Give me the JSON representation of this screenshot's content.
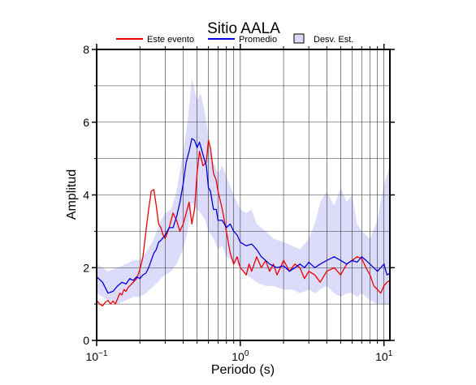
{
  "chart_data": {
    "type": "line",
    "title": "Sitio AALA",
    "xlabel": "Periodo (s)",
    "ylabel": "Amplitud",
    "x_scale": "log",
    "xlim": [
      0.1,
      11
    ],
    "ylim": [
      0,
      8
    ],
    "y_ticks": [
      {
        "value": 0,
        "label": "0"
      },
      {
        "value": 2,
        "label": "2"
      },
      {
        "value": 4,
        "label": "4"
      },
      {
        "value": 6,
        "label": "6"
      },
      {
        "value": 8,
        "label": "8"
      }
    ],
    "x_ticks": [
      {
        "value": 0.1,
        "base": "10",
        "exp": "−1"
      },
      {
        "value": 1,
        "base": "10",
        "exp": "0"
      },
      {
        "value": 10,
        "base": "10",
        "exp": "1"
      }
    ],
    "grid": true,
    "legend_position": "top",
    "colors": {
      "event": "#ee0000",
      "mean": "#0000dd",
      "band": "#dcdcfa"
    },
    "legend": [
      {
        "label": "Este evento",
        "kind": "line",
        "color": "#ee0000"
      },
      {
        "label": "Promedio",
        "kind": "line",
        "color": "#0000dd"
      },
      {
        "label": "Desv. Est.",
        "kind": "patch",
        "color": "#dcdcfa"
      }
    ],
    "series": [
      {
        "name": "Este evento",
        "x": [
          0.1,
          0.105,
          0.11,
          0.115,
          0.12,
          0.125,
          0.13,
          0.135,
          0.14,
          0.145,
          0.15,
          0.155,
          0.16,
          0.165,
          0.17,
          0.175,
          0.18,
          0.185,
          0.19,
          0.2,
          0.21,
          0.22,
          0.23,
          0.24,
          0.25,
          0.26,
          0.27,
          0.28,
          0.29,
          0.3,
          0.32,
          0.34,
          0.36,
          0.38,
          0.4,
          0.42,
          0.44,
          0.46,
          0.48,
          0.5,
          0.52,
          0.55,
          0.58,
          0.6,
          0.62,
          0.65,
          0.68,
          0.7,
          0.75,
          0.8,
          0.85,
          0.9,
          0.95,
          1.0,
          1.05,
          1.1,
          1.15,
          1.2,
          1.3,
          1.4,
          1.5,
          1.6,
          1.7,
          1.8,
          1.9,
          2.0,
          2.2,
          2.4,
          2.6,
          2.8,
          3.0,
          3.3,
          3.6,
          4.0,
          4.5,
          5.0,
          5.5,
          6.0,
          6.5,
          7.0,
          7.5,
          8.0,
          8.5,
          9.0,
          9.5,
          10.0,
          10.5,
          11.0
        ],
        "y": [
          1.1,
          1.0,
          0.95,
          1.05,
          1.1,
          1.0,
          1.08,
          1.0,
          1.15,
          1.3,
          1.25,
          1.4,
          1.35,
          1.45,
          1.5,
          1.55,
          1.6,
          1.65,
          1.7,
          1.95,
          2.3,
          3.0,
          3.6,
          4.1,
          4.15,
          3.7,
          3.2,
          3.1,
          2.9,
          2.8,
          3.1,
          3.5,
          3.3,
          3.0,
          3.2,
          3.5,
          3.8,
          3.2,
          3.6,
          4.6,
          5.2,
          4.8,
          4.9,
          5.5,
          5.3,
          4.6,
          4.4,
          4.1,
          3.6,
          3.0,
          2.4,
          2.1,
          2.3,
          2.0,
          1.9,
          1.8,
          2.1,
          1.9,
          2.3,
          2.0,
          2.2,
          1.9,
          2.1,
          1.8,
          2.0,
          2.2,
          1.9,
          2.1,
          2.0,
          1.7,
          1.9,
          1.8,
          1.6,
          1.9,
          2.0,
          1.8,
          2.1,
          2.2,
          2.3,
          2.25,
          2.0,
          1.8,
          1.5,
          1.4,
          1.3,
          1.5,
          1.6,
          1.65
        ]
      },
      {
        "name": "Promedio",
        "x": [
          0.1,
          0.11,
          0.12,
          0.13,
          0.14,
          0.15,
          0.16,
          0.17,
          0.18,
          0.19,
          0.2,
          0.21,
          0.22,
          0.23,
          0.24,
          0.25,
          0.26,
          0.27,
          0.28,
          0.3,
          0.32,
          0.34,
          0.36,
          0.38,
          0.4,
          0.42,
          0.44,
          0.46,
          0.48,
          0.5,
          0.52,
          0.55,
          0.58,
          0.6,
          0.62,
          0.65,
          0.68,
          0.7,
          0.75,
          0.8,
          0.85,
          0.9,
          0.95,
          1.0,
          1.1,
          1.2,
          1.3,
          1.4,
          1.5,
          1.6,
          1.8,
          2.0,
          2.2,
          2.4,
          2.6,
          2.8,
          3.0,
          3.3,
          3.6,
          4.0,
          4.5,
          5.0,
          5.5,
          6.0,
          6.5,
          7.0,
          7.5,
          8.0,
          8.5,
          9.0,
          9.5,
          10.0,
          10.5,
          11.0
        ],
        "y": [
          1.75,
          1.6,
          1.3,
          1.35,
          1.5,
          1.6,
          1.55,
          1.7,
          1.65,
          1.75,
          1.7,
          1.8,
          1.85,
          2.0,
          2.2,
          2.4,
          2.5,
          2.7,
          2.75,
          2.9,
          3.1,
          3.1,
          3.4,
          3.8,
          4.3,
          4.9,
          5.2,
          5.55,
          5.5,
          5.3,
          5.45,
          5.1,
          4.8,
          4.2,
          4.1,
          3.6,
          3.6,
          3.3,
          3.3,
          3.1,
          3.2,
          3.0,
          2.9,
          2.7,
          2.6,
          2.65,
          2.5,
          2.3,
          2.2,
          2.1,
          2.0,
          2.05,
          1.9,
          2.0,
          2.1,
          2.0,
          2.15,
          2.0,
          2.1,
          2.2,
          2.3,
          2.2,
          2.1,
          2.2,
          2.15,
          2.3,
          2.2,
          2.1,
          2.0,
          1.9,
          2.0,
          2.1,
          1.8,
          1.85
        ]
      },
      {
        "name": "Desv. Est.",
        "x": [
          0.1,
          0.12,
          0.14,
          0.16,
          0.18,
          0.2,
          0.22,
          0.25,
          0.28,
          0.3,
          0.33,
          0.36,
          0.4,
          0.43,
          0.46,
          0.5,
          0.53,
          0.57,
          0.6,
          0.65,
          0.7,
          0.75,
          0.8,
          0.9,
          1.0,
          1.1,
          1.2,
          1.3,
          1.5,
          1.7,
          2.0,
          2.3,
          2.6,
          3.0,
          3.3,
          3.6,
          4.0,
          4.5,
          5.0,
          5.5,
          6.0,
          6.5,
          7.0,
          8.0,
          9.0,
          10.0,
          11.0
        ],
        "upper": [
          2.1,
          1.9,
          2.0,
          2.1,
          2.2,
          2.2,
          2.4,
          2.8,
          3.3,
          3.5,
          3.6,
          4.1,
          5.2,
          6.0,
          7.2,
          6.6,
          6.8,
          6.2,
          5.6,
          4.9,
          4.6,
          4.8,
          4.5,
          4.0,
          3.6,
          3.5,
          3.6,
          3.2,
          3.0,
          2.8,
          2.7,
          2.6,
          2.5,
          2.8,
          3.2,
          3.8,
          4.1,
          3.7,
          4.2,
          3.8,
          4.0,
          3.2,
          3.0,
          2.8,
          3.3,
          4.3,
          4.8
        ],
        "lower": [
          1.3,
          1.1,
          1.0,
          1.1,
          1.2,
          1.2,
          1.3,
          1.5,
          1.7,
          1.8,
          1.9,
          2.1,
          2.5,
          3.0,
          3.8,
          3.6,
          3.5,
          3.3,
          3.0,
          2.8,
          2.5,
          2.6,
          2.3,
          2.2,
          2.0,
          1.8,
          1.7,
          1.6,
          1.5,
          1.5,
          1.4,
          1.4,
          1.3,
          1.4,
          1.3,
          1.4,
          1.5,
          1.3,
          1.2,
          1.3,
          1.3,
          1.2,
          1.3,
          1.1,
          1.0,
          1.0,
          1.0
        ]
      }
    ]
  }
}
